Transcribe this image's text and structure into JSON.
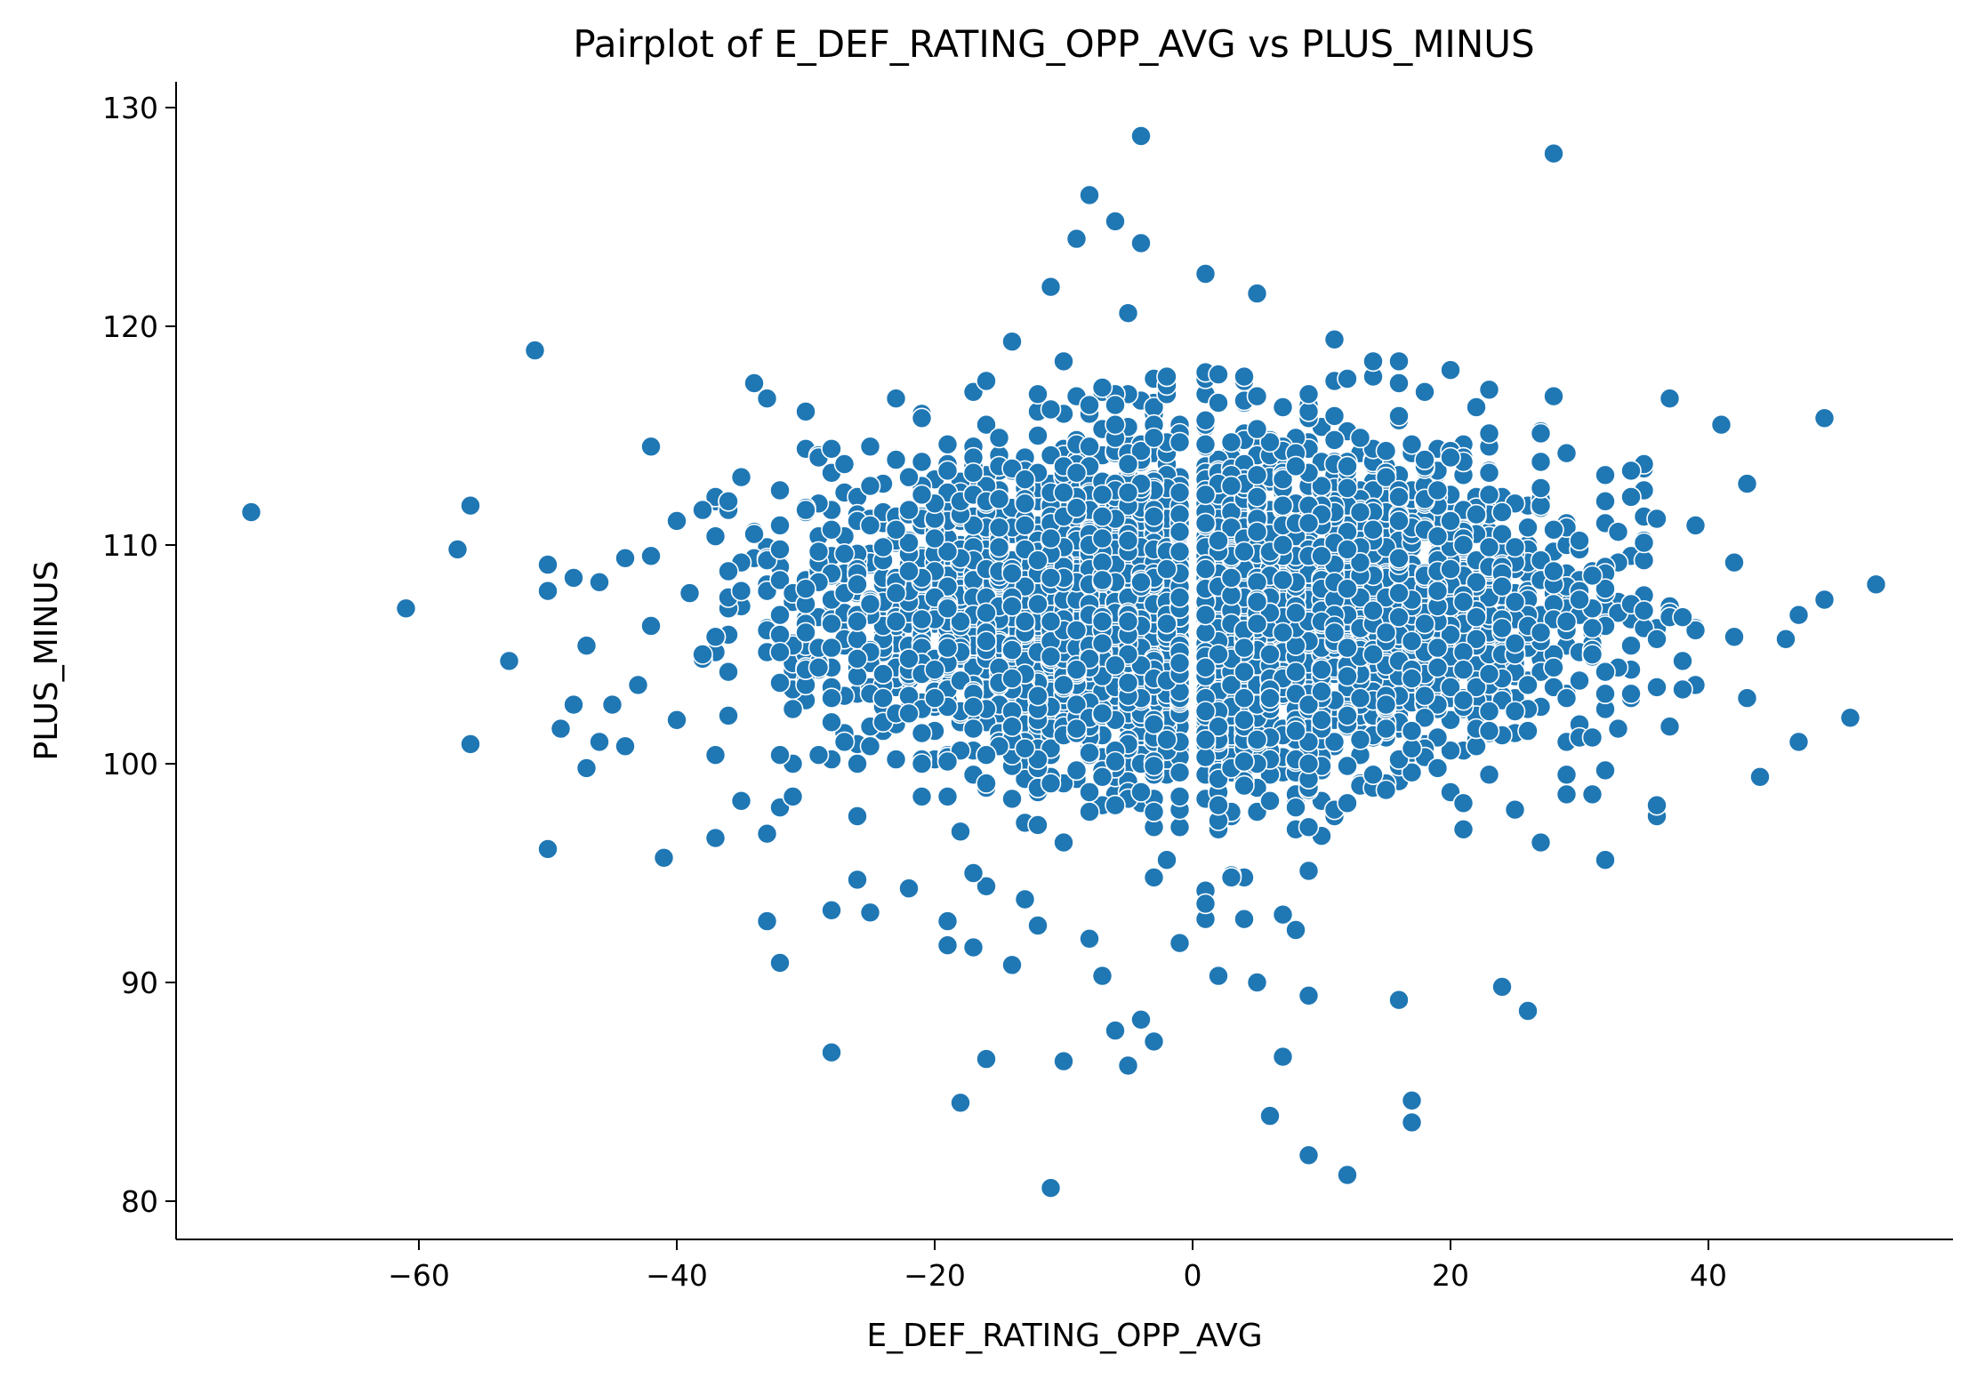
{
  "chart_data": {
    "type": "scatter",
    "title": "Pairplot of E_DEF_RATING_OPP_AVG vs PLUS_MINUS",
    "xlabel": "E_DEF_RATING_OPP_AVG",
    "ylabel": "PLUS_MINUS",
    "xlim": [
      -79,
      59
    ],
    "ylim": [
      78,
      131
    ],
    "xticks": [
      -60,
      -40,
      -20,
      0,
      20,
      40
    ],
    "xtick_labels": [
      "−60",
      "−40",
      "−20",
      "0",
      "20",
      "40"
    ],
    "yticks": [
      80,
      90,
      100,
      110,
      120,
      130
    ],
    "ytick_labels": [
      "80",
      "90",
      "100",
      "110",
      "120",
      "130"
    ],
    "grid": false,
    "marker_color": "#1f77b4",
    "marker_edge_color": "#ffffff",
    "points": [
      [
        -73,
        111.5
      ],
      [
        -61,
        107.1
      ],
      [
        -57,
        109.8
      ],
      [
        -56,
        111.8
      ],
      [
        -56,
        100.9
      ],
      [
        -53,
        104.7
      ],
      [
        -51,
        118.9
      ],
      [
        -50,
        109.1
      ],
      [
        -50,
        107.9
      ],
      [
        -50,
        96.1
      ],
      [
        -49,
        101.6
      ],
      [
        -48,
        108.5
      ],
      [
        -48,
        102.7
      ],
      [
        -47,
        99.8
      ],
      [
        -47,
        105.4
      ],
      [
        -46,
        108.3
      ],
      [
        -46,
        101.0
      ],
      [
        -45,
        102.7
      ],
      [
        -44,
        109.4
      ],
      [
        -44,
        100.8
      ],
      [
        -43,
        103.6
      ],
      [
        -42,
        114.5
      ],
      [
        -42,
        109.5
      ],
      [
        -42,
        106.3
      ],
      [
        -41,
        95.7
      ],
      [
        -40,
        111.1
      ],
      [
        -40,
        102.0
      ],
      [
        -39,
        107.8
      ],
      [
        -38,
        111.6
      ],
      [
        -37,
        96.6
      ],
      [
        -37,
        100.4
      ],
      [
        -36,
        108.8
      ],
      [
        -35,
        113.1
      ],
      [
        -35,
        98.3
      ],
      [
        -34,
        117.4
      ],
      [
        -34,
        110.5
      ],
      [
        -33,
        116.7
      ],
      [
        -33,
        96.8
      ],
      [
        -33,
        92.8
      ],
      [
        -32,
        90.9
      ],
      [
        -32,
        112.5
      ],
      [
        -31,
        98.5
      ],
      [
        -30,
        116.1
      ],
      [
        -30,
        108.0
      ],
      [
        -29,
        104.4
      ],
      [
        -28,
        93.3
      ],
      [
        -28,
        86.8
      ],
      [
        -27,
        113.7
      ],
      [
        -26,
        97.6
      ],
      [
        -26,
        94.7
      ],
      [
        -25,
        114.5
      ],
      [
        -25,
        93.2
      ],
      [
        -24,
        109.9
      ],
      [
        -23,
        113.9
      ],
      [
        -22,
        94.3
      ],
      [
        -21,
        115.8
      ],
      [
        -20,
        103.0
      ],
      [
        -19,
        92.8
      ],
      [
        -19,
        91.7
      ],
      [
        -18,
        84.5
      ],
      [
        -17,
        95.0
      ],
      [
        -17,
        91.6
      ],
      [
        -16,
        86.5
      ],
      [
        -15,
        114.9
      ],
      [
        -14,
        119.3
      ],
      [
        -14,
        90.8
      ],
      [
        -13,
        93.8
      ],
      [
        -12,
        116.9
      ],
      [
        -11,
        121.8
      ],
      [
        -11,
        80.6
      ],
      [
        -10,
        118.4
      ],
      [
        -10,
        86.4
      ],
      [
        -9,
        124.0
      ],
      [
        -8,
        126.0
      ],
      [
        -8,
        92.0
      ],
      [
        -7,
        90.3
      ],
      [
        -6,
        124.8
      ],
      [
        -6,
        87.8
      ],
      [
        -5,
        120.6
      ],
      [
        -5,
        86.2
      ],
      [
        -4,
        128.7
      ],
      [
        -4,
        123.8
      ],
      [
        -4,
        88.3
      ],
      [
        -3,
        87.3
      ],
      [
        -2,
        117.7
      ],
      [
        -1,
        91.8
      ],
      [
        1,
        122.4
      ],
      [
        1,
        93.6
      ],
      [
        2,
        90.3
      ],
      [
        3,
        94.8
      ],
      [
        4,
        92.9
      ],
      [
        5,
        121.5
      ],
      [
        5,
        90.0
      ],
      [
        6,
        83.9
      ],
      [
        7,
        86.6
      ],
      [
        8,
        92.4
      ],
      [
        9,
        89.4
      ],
      [
        9,
        82.1
      ],
      [
        11,
        119.4
      ],
      [
        12,
        81.2
      ],
      [
        14,
        118.4
      ],
      [
        16,
        118.4
      ],
      [
        16,
        89.2
      ],
      [
        17,
        84.6
      ],
      [
        17,
        83.6
      ],
      [
        20,
        118.0
      ],
      [
        23,
        117.1
      ],
      [
        24,
        89.8
      ],
      [
        26,
        88.7
      ],
      [
        27,
        96.4
      ],
      [
        28,
        127.9
      ],
      [
        29,
        98.6
      ],
      [
        32,
        95.6
      ],
      [
        36,
        98.1
      ],
      [
        37,
        116.7
      ],
      [
        37,
        101.7
      ],
      [
        41,
        115.5
      ],
      [
        43,
        112.8
      ],
      [
        43,
        103.0
      ],
      [
        44,
        99.4
      ],
      [
        46,
        105.7
      ],
      [
        47,
        101.0
      ],
      [
        49,
        115.8
      ],
      [
        49,
        107.5
      ],
      [
        51,
        102.1
      ],
      [
        53,
        108.2
      ]
    ],
    "cloud_note_free": true
  }
}
